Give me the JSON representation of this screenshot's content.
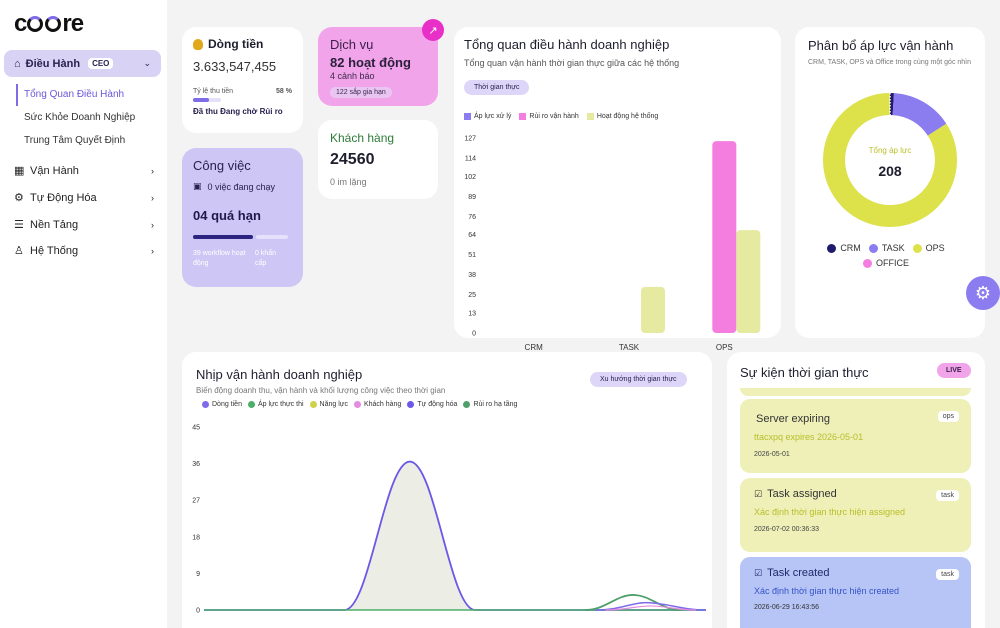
{
  "brand": {
    "logo_text_a": "c",
    "logo_text_b": "re"
  },
  "sidebar": {
    "active": {
      "label": "Điều Hành",
      "badge": "CEO"
    },
    "sub_items": [
      "Tổng Quan Điều Hành",
      "Sức Khỏe Doanh Nghiệp",
      "Trung Tâm Quyết Định"
    ],
    "menu": [
      {
        "label": "Vận Hành",
        "icon": "grid-icon"
      },
      {
        "label": "Tự Động Hóa",
        "icon": "gear-icon"
      },
      {
        "label": "Nền Tảng",
        "icon": "layers-icon"
      },
      {
        "label": "Hệ Thống",
        "icon": "user-icon"
      }
    ]
  },
  "cashflow": {
    "title": "Dòng tiền",
    "value": "3.633,547,455",
    "rate_label": "Tỷ lệ thu tiền",
    "rate_value": "58 %",
    "rate": 0.58,
    "risk": "Đã thu Đang chờ Rủi ro"
  },
  "service": {
    "title": "Dịch vụ",
    "active": "82 hoạt động",
    "warnings": "4 cảnh báo",
    "badge": "122 sắp gia hạn"
  },
  "customer": {
    "title": "Khách hàng",
    "value": "24560",
    "sub": "0 im lặng"
  },
  "work": {
    "title": "Công việc",
    "running": "0 việc đang chạy",
    "overdue": "04 quá hạn",
    "f1": "39 workflow hoạt động",
    "f2": "0 khẩn cấp"
  },
  "overview": {
    "title": "Tổng quan điều hành doanh nghiệp",
    "subtitle": "Tổng quan vận hành thời gian thực giữa các hệ thống",
    "button": "Thời gian thực"
  },
  "pressure": {
    "title": "Phân bổ áp lực vận hành",
    "subtitle": "CRM, TASK, OPS và Office trong cùng một góc nhìn",
    "center_label": "Tổng áp lực",
    "center_value": "208"
  },
  "rhythm": {
    "title": "Nhịp vận hành doanh nghiệp",
    "subtitle": "Biến động doanh thu, vận hành và khối lượng công việc theo thời gian",
    "button": "Xu hướng thời gian thực"
  },
  "events": {
    "title": "Sự kiện thời gian thực",
    "live": "LIVE",
    "items": [
      {
        "title": "Server expiring",
        "tag": "ops",
        "desc": "ttacxpq expires 2026-05-01",
        "time": "2026-05-01"
      },
      {
        "title": "Task assigned",
        "tag": "task",
        "desc": "Xác định thời gian thực hiện assigned",
        "time": "2026-07-02 00:36:33"
      },
      {
        "title": "Task created",
        "tag": "task",
        "desc": "Xác định thời gian thực hiện created",
        "time": "2026-06-29 16:43:56"
      }
    ]
  },
  "colors": {
    "purple": "#7d6be8",
    "pink": "#f47de0",
    "lime": "#dde24a",
    "navy": "#1f1a6e",
    "green": "#4caf6a"
  },
  "chart_data": [
    {
      "type": "bar",
      "categories": [
        "CRM",
        "TASK",
        "OPS"
      ],
      "series": [
        {
          "name": "Áp lực xử lý",
          "color": "#8b7cf0",
          "values": [
            0,
            0,
            0
          ]
        },
        {
          "name": "Rủi ro vận hành",
          "color": "#f47de0",
          "values": [
            0,
            0,
            125
          ]
        },
        {
          "name": "Hoạt động hệ thống",
          "color": "#e6eaa0",
          "values": [
            0,
            30,
            67
          ]
        }
      ],
      "yticks": [
        0,
        13,
        25,
        38,
        51,
        64,
        76,
        89,
        102,
        114,
        127
      ],
      "ylim": [
        0,
        127
      ]
    },
    {
      "type": "pie",
      "slices": [
        {
          "name": "CRM",
          "value": 2,
          "color": "#1f1a6e"
        },
        {
          "name": "TASK",
          "value": 31,
          "color": "#8b7cf0"
        },
        {
          "name": "OPS",
          "value": 175,
          "color": "#dde24a"
        },
        {
          "name": "OFFICE",
          "value": 0,
          "color": "#f47de0"
        }
      ],
      "total": 208
    },
    {
      "type": "line",
      "series": [
        {
          "name": "Dòng tiền",
          "color": "#7d6be8"
        },
        {
          "name": "Áp lực thực thi",
          "color": "#4caf6a"
        },
        {
          "name": "Năng lực",
          "color": "#cfd14a"
        },
        {
          "name": "Khách hàng",
          "color": "#e58be0"
        },
        {
          "name": "Tự động hóa",
          "color": "#6a58e8"
        },
        {
          "name": "Rủi ro hạ tầng",
          "color": "#4f9f6a"
        }
      ],
      "yticks": [
        0,
        9,
        18,
        27,
        36,
        45
      ],
      "ylim": [
        0,
        45
      ]
    }
  ]
}
